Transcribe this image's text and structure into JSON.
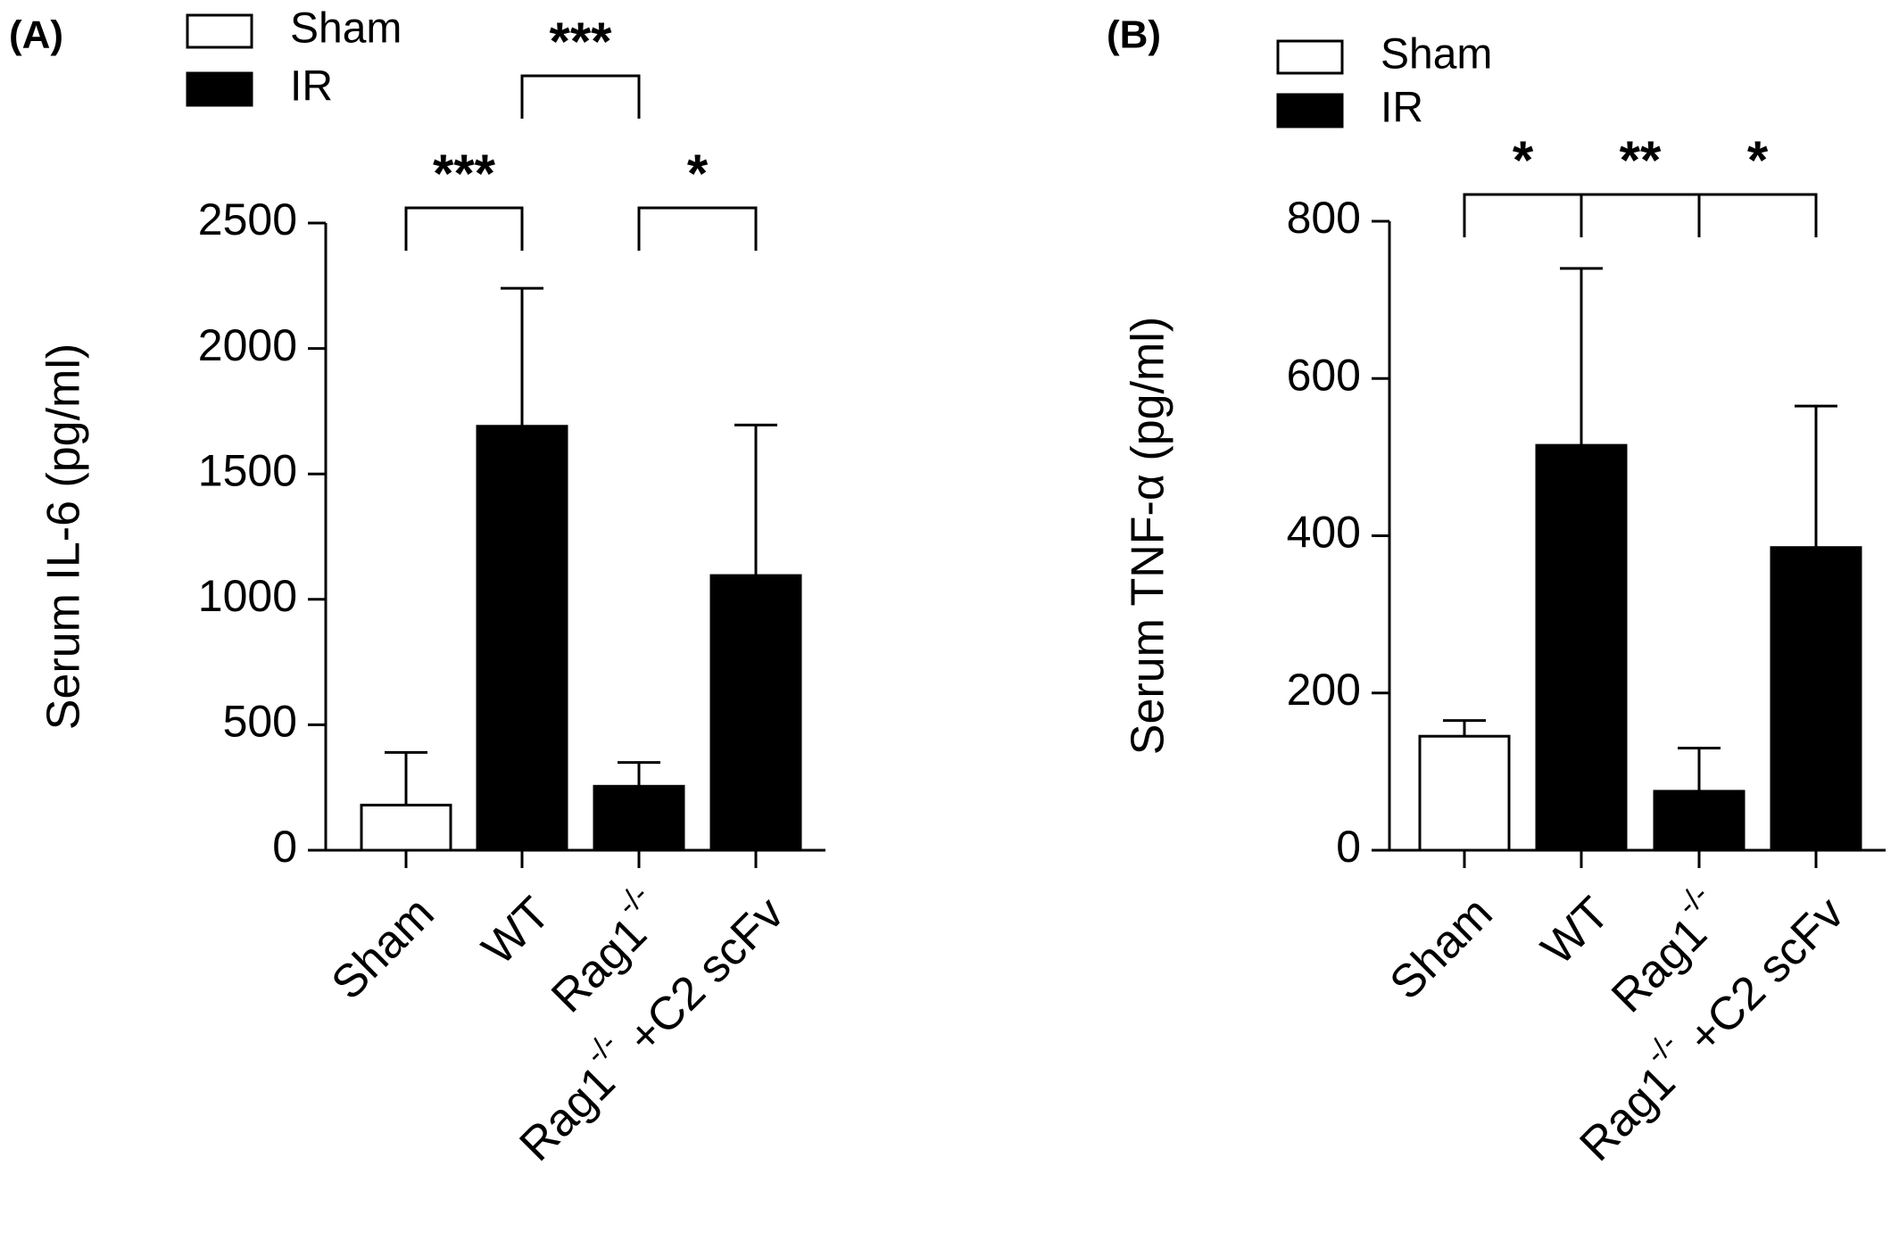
{
  "chart_data": [
    {
      "panel_label": "(A)",
      "type": "bar",
      "ylabel": "Serum IL-6 (pg/ml)",
      "ylim": [
        0,
        2500
      ],
      "yticks": [
        "0",
        "500",
        "1000",
        "1500",
        "2000",
        "2500"
      ],
      "ytick_values": [
        0,
        500,
        1000,
        1500,
        2000,
        2500
      ],
      "categories": [
        {
          "main": "Sham",
          "sup": "",
          "tail": ""
        },
        {
          "main": "WT",
          "sup": "",
          "tail": ""
        },
        {
          "main": "Rag1",
          "sup": "-/-",
          "tail": ""
        },
        {
          "main": "Rag1",
          "sup": "-/-",
          "tail": " +C2 scFv"
        }
      ],
      "values": [
        180,
        1690,
        255,
        1095
      ],
      "errors": [
        210,
        550,
        95,
        600
      ],
      "groups": [
        "Sham",
        "IR",
        "IR",
        "IR"
      ],
      "legend": [
        {
          "label": "Sham",
          "color": "#ffffff"
        },
        {
          "label": "IR",
          "color": "#000000"
        }
      ],
      "significance": [
        {
          "from": 0,
          "to": 1,
          "label": "***",
          "level": 0
        },
        {
          "from": 2,
          "to": 3,
          "label": "*",
          "level": 0
        },
        {
          "from": 1,
          "to": 2,
          "label": "***",
          "level": 1
        }
      ],
      "grid": false,
      "legend_position": "top-left"
    },
    {
      "panel_label": "(B)",
      "type": "bar",
      "ylabel": "Serum TNF-α (pg/ml)",
      "ylim": [
        0,
        800
      ],
      "yticks": [
        "0",
        "200",
        "400",
        "600",
        "800"
      ],
      "ytick_values": [
        0,
        200,
        400,
        600,
        800
      ],
      "categories": [
        {
          "main": "Sham",
          "sup": "",
          "tail": ""
        },
        {
          "main": "WT",
          "sup": "",
          "tail": ""
        },
        {
          "main": "Rag1",
          "sup": "-/-",
          "tail": ""
        },
        {
          "main": "Rag1",
          "sup": "-/-",
          "tail": " +C2 scFv"
        }
      ],
      "values": [
        145,
        515,
        75,
        385
      ],
      "errors": [
        20,
        225,
        55,
        180
      ],
      "groups": [
        "Sham",
        "IR",
        "IR",
        "IR"
      ],
      "legend": [
        {
          "label": "Sham",
          "color": "#ffffff"
        },
        {
          "label": "IR",
          "color": "#000000"
        }
      ],
      "significance": [
        {
          "from": 0,
          "to": 1,
          "label": "*",
          "level": 0
        },
        {
          "from": 1,
          "to": 2,
          "label": "**",
          "level": 0
        },
        {
          "from": 2,
          "to": 3,
          "label": "*",
          "level": 0
        }
      ],
      "grid": false,
      "legend_position": "top-left"
    }
  ]
}
